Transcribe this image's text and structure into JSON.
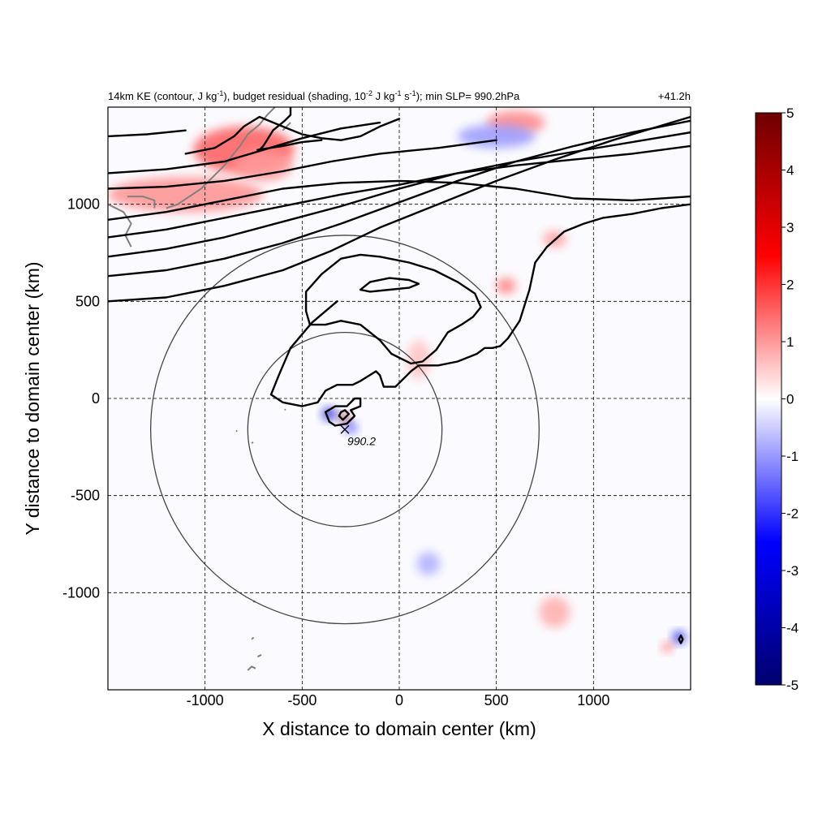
{
  "chart_data": {
    "type": "heatmap",
    "title_parts": {
      "t1": "14km KE (contour, J kg",
      "t1_sup": "-1",
      "t2": "), budget residual (shading, 10",
      "t2_sup": "-2",
      "t3": " J kg",
      "t3_sup": "-1",
      "t4": " s",
      "t4_sup": "-1",
      "t5": "); min SLP= 990.2hPa"
    },
    "time_label": "+41.2h",
    "xlabel": "X distance to domain center (km)",
    "ylabel": "Y distance to domain center (km)",
    "xlim": [
      -1500,
      1500
    ],
    "ylim": [
      -1500,
      1500
    ],
    "x_ticks": [
      -1000,
      -500,
      0,
      500,
      1000
    ],
    "y_ticks": [
      1000,
      500,
      0,
      -500,
      -1000
    ],
    "grid": "dashed",
    "colorbar": {
      "min": -5,
      "max": 5,
      "ticks": [
        5,
        4,
        3,
        2,
        1,
        0,
        -1,
        -2,
        -3,
        -4,
        -5
      ],
      "colors": [
        "#00006e",
        "#0000ff",
        "#ffffff",
        "#ff0000",
        "#6e0000"
      ]
    },
    "storm_center": {
      "x": -280,
      "y": -160,
      "label": "990.2"
    },
    "range_circles_km": [
      {
        "cx": -280,
        "cy": -160,
        "r": 500
      },
      {
        "cx": -280,
        "cy": -160,
        "r": 1000
      }
    ],
    "shading_features": [
      {
        "x": -800,
        "y": 1280,
        "v": 1.6,
        "sx": 260,
        "sy": 120
      },
      {
        "x": -1100,
        "y": 1050,
        "v": 1.1,
        "sx": 400,
        "sy": 90
      },
      {
        "x": -700,
        "y": 1200,
        "v": 1.0,
        "sx": 150,
        "sy": 80
      },
      {
        "x": 600,
        "y": 1420,
        "v": 1.2,
        "sx": 150,
        "sy": 60
      },
      {
        "x": 800,
        "y": 820,
        "v": 1.0,
        "sx": 60,
        "sy": 40
      },
      {
        "x": 550,
        "y": 580,
        "v": 1.3,
        "sx": 50,
        "sy": 40
      },
      {
        "x": -280,
        "y": -100,
        "v": 4.5,
        "sx": 25,
        "sy": 22
      },
      {
        "x": -360,
        "y": -80,
        "v": -3.5,
        "sx": 35,
        "sy": 30
      },
      {
        "x": -250,
        "y": -150,
        "v": -2.0,
        "sx": 30,
        "sy": 25
      },
      {
        "x": 100,
        "y": 200,
        "v": 0.6,
        "sx": 60,
        "sy": 100
      },
      {
        "x": 1440,
        "y": -1230,
        "v": -3.0,
        "sx": 30,
        "sy": 30
      },
      {
        "x": 1380,
        "y": -1280,
        "v": 1.5,
        "sx": 25,
        "sy": 25
      },
      {
        "x": 800,
        "y": -1100,
        "v": 0.8,
        "sx": 80,
        "sy": 80
      },
      {
        "x": 150,
        "y": -850,
        "v": -0.8,
        "sx": 60,
        "sy": 60
      },
      {
        "x": 500,
        "y": 1350,
        "v": -1.0,
        "sx": 200,
        "sy": 60
      }
    ],
    "ke_contours": [
      [
        [
          -1500,
          500
        ],
        [
          -1200,
          520
        ],
        [
          -900,
          580
        ],
        [
          -600,
          660
        ],
        [
          -350,
          760
        ],
        [
          -100,
          880
        ],
        [
          200,
          1000
        ],
        [
          500,
          1120
        ],
        [
          800,
          1230
        ],
        [
          1100,
          1330
        ],
        [
          1400,
          1420
        ],
        [
          1500,
          1450
        ]
      ],
      [
        [
          -1500,
          630
        ],
        [
          -1200,
          660
        ],
        [
          -900,
          720
        ],
        [
          -600,
          800
        ],
        [
          -300,
          900
        ],
        [
          0,
          1010
        ],
        [
          300,
          1120
        ],
        [
          600,
          1220
        ],
        [
          900,
          1300
        ],
        [
          1200,
          1370
        ],
        [
          1500,
          1430
        ]
      ],
      [
        [
          -1500,
          730
        ],
        [
          -1200,
          770
        ],
        [
          -900,
          830
        ],
        [
          -600,
          910
        ],
        [
          -300,
          990
        ],
        [
          0,
          1080
        ],
        [
          300,
          1160
        ],
        [
          600,
          1220
        ],
        [
          900,
          1270
        ],
        [
          1200,
          1320
        ],
        [
          1500,
          1370
        ]
      ],
      [
        [
          -1500,
          830
        ],
        [
          -1200,
          870
        ],
        [
          -900,
          930
        ],
        [
          -600,
          990
        ],
        [
          -300,
          1050
        ],
        [
          0,
          1100
        ],
        [
          300,
          1160
        ],
        [
          600,
          1200
        ],
        [
          900,
          1230
        ],
        [
          1200,
          1260
        ],
        [
          1500,
          1300
        ]
      ],
      [
        [
          -1500,
          920
        ],
        [
          -1200,
          960
        ],
        [
          -900,
          1020
        ],
        [
          -600,
          1080
        ],
        [
          -300,
          1110
        ],
        [
          0,
          1120
        ],
        [
          300,
          1110
        ],
        [
          600,
          1080
        ],
        [
          900,
          1030
        ],
        [
          1200,
          1020
        ],
        [
          1500,
          1040
        ]
      ],
      [
        [
          -1500,
          1080
        ],
        [
          -1200,
          1090
        ],
        [
          -900,
          1120
        ],
        [
          -600,
          1170
        ],
        [
          -350,
          1220
        ],
        [
          -100,
          1260
        ],
        [
          200,
          1290
        ],
        [
          500,
          1330
        ]
      ],
      [
        [
          -1500,
          1160
        ],
        [
          -1200,
          1180
        ],
        [
          -900,
          1220
        ],
        [
          -700,
          1280
        ],
        [
          -500,
          1340
        ],
        [
          -300,
          1390
        ],
        [
          -100,
          1420
        ]
      ],
      [
        [
          -1100,
          1260
        ],
        [
          -950,
          1290
        ],
        [
          -850,
          1350
        ],
        [
          -800,
          1400
        ],
        [
          -720,
          1450
        ],
        [
          -600,
          1400
        ],
        [
          -500,
          1360
        ],
        [
          -400,
          1340
        ],
        [
          -300,
          1330
        ],
        [
          -200,
          1350
        ],
        [
          -100,
          1400
        ],
        [
          0,
          1440
        ]
      ],
      [
        [
          -730,
          1280
        ],
        [
          -600,
          1300
        ],
        [
          -500,
          1320
        ],
        [
          -400,
          1330
        ]
      ],
      [
        [
          -1500,
          1350
        ],
        [
          -1300,
          1360
        ],
        [
          -1100,
          1380
        ]
      ],
      [
        [
          -720,
          1280
        ],
        [
          -700,
          1300
        ],
        [
          -650,
          1380
        ],
        [
          -590,
          1430
        ],
        [
          -560,
          1460
        ],
        [
          -560,
          1500
        ]
      ],
      [
        [
          -320,
          500
        ],
        [
          -450,
          390
        ],
        [
          -560,
          260
        ],
        [
          -620,
          120
        ],
        [
          -660,
          20
        ],
        [
          -600,
          -20
        ],
        [
          -500,
          -40
        ],
        [
          -420,
          -20
        ],
        [
          -380,
          40
        ],
        [
          -320,
          70
        ],
        [
          -240,
          70
        ],
        [
          -200,
          90
        ],
        [
          -120,
          140
        ],
        [
          -100,
          120
        ],
        [
          -80,
          60
        ],
        [
          -20,
          60
        ],
        [
          60,
          140
        ],
        [
          100,
          170
        ],
        [
          200,
          170
        ],
        [
          300,
          190
        ],
        [
          400,
          230
        ],
        [
          440,
          260
        ],
        [
          480,
          260
        ],
        [
          520,
          270
        ],
        [
          560,
          310
        ],
        [
          620,
          400
        ],
        [
          670,
          560
        ],
        [
          700,
          700
        ],
        [
          760,
          780
        ],
        [
          850,
          860
        ],
        [
          950,
          900
        ],
        [
          1050,
          930
        ],
        [
          1200,
          950
        ],
        [
          1350,
          980
        ],
        [
          1500,
          1000
        ]
      ],
      [
        [
          -480,
          550
        ],
        [
          -400,
          640
        ],
        [
          -300,
          720
        ],
        [
          -200,
          740
        ],
        [
          -100,
          730
        ],
        [
          50,
          700
        ],
        [
          180,
          660
        ],
        [
          300,
          600
        ],
        [
          390,
          540
        ],
        [
          420,
          470
        ],
        [
          380,
          420
        ],
        [
          320,
          380
        ],
        [
          250,
          340
        ],
        [
          190,
          250
        ],
        [
          120,
          190
        ],
        [
          60,
          180
        ],
        [
          -40,
          230
        ],
        [
          -100,
          300
        ],
        [
          -200,
          380
        ],
        [
          -300,
          400
        ],
        [
          -380,
          380
        ],
        [
          -460,
          380
        ],
        [
          -480,
          450
        ],
        [
          -480,
          550
        ]
      ],
      [
        [
          -200,
          560
        ],
        [
          -150,
          600
        ],
        [
          -50,
          620
        ],
        [
          50,
          610
        ],
        [
          100,
          590
        ],
        [
          50,
          570
        ],
        [
          -50,
          560
        ],
        [
          -150,
          550
        ],
        [
          -200,
          560
        ]
      ],
      [
        [
          -360,
          -120
        ],
        [
          -380,
          -70
        ],
        [
          -330,
          -40
        ],
        [
          -270,
          -40
        ],
        [
          -230,
          0
        ],
        [
          -200,
          0
        ],
        [
          -200,
          -40
        ],
        [
          -250,
          -60
        ],
        [
          -230,
          -90
        ],
        [
          -270,
          -130
        ],
        [
          -330,
          -140
        ],
        [
          -360,
          -120
        ]
      ],
      [
        [
          -300,
          -70
        ],
        [
          -280,
          -60
        ],
        [
          -260,
          -80
        ],
        [
          -290,
          -110
        ],
        [
          -310,
          -90
        ],
        [
          -300,
          -70
        ]
      ],
      [
        [
          1440,
          -1240
        ],
        [
          1450,
          -1220
        ],
        [
          1460,
          -1240
        ],
        [
          1450,
          -1260
        ],
        [
          1440,
          -1240
        ]
      ]
    ],
    "coastlines_km": [
      [
        [
          -1500,
          1000
        ],
        [
          -1420,
          960
        ],
        [
          -1380,
          900
        ],
        [
          -1410,
          840
        ],
        [
          -1380,
          780
        ]
      ],
      [
        [
          -1200,
          980
        ],
        [
          -1140,
          1000
        ],
        [
          -1080,
          1040
        ],
        [
          -1020,
          1080
        ],
        [
          -960,
          1140
        ],
        [
          -900,
          1200
        ],
        [
          -860,
          1250
        ],
        [
          -820,
          1300
        ],
        [
          -780,
          1360
        ],
        [
          -720,
          1410
        ],
        [
          -680,
          1460
        ],
        [
          -640,
          1500
        ]
      ],
      [
        [
          -1260,
          980
        ],
        [
          -1260,
          1020
        ],
        [
          -1320,
          1040
        ],
        [
          -1400,
          1040
        ]
      ],
      [
        [
          -600,
          1380
        ],
        [
          -560,
          1420
        ]
      ],
      [
        [
          -780,
          -1400
        ],
        [
          -760,
          -1380
        ],
        [
          -740,
          -1390
        ]
      ],
      [
        [
          -730,
          -1330
        ],
        [
          -710,
          -1320
        ]
      ],
      [
        [
          -760,
          -1240
        ],
        [
          -750,
          -1230
        ]
      ],
      [
        [
          -750,
          -1050
        ],
        [
          -745,
          -1040
        ]
      ],
      [
        [
          -760,
          -230
        ],
        [
          -752,
          -225
        ]
      ],
      [
        [
          -840,
          -170
        ],
        [
          -835,
          -165
        ]
      ],
      [
        [
          -590,
          -60
        ],
        [
          -586,
          -55
        ]
      ]
    ]
  }
}
